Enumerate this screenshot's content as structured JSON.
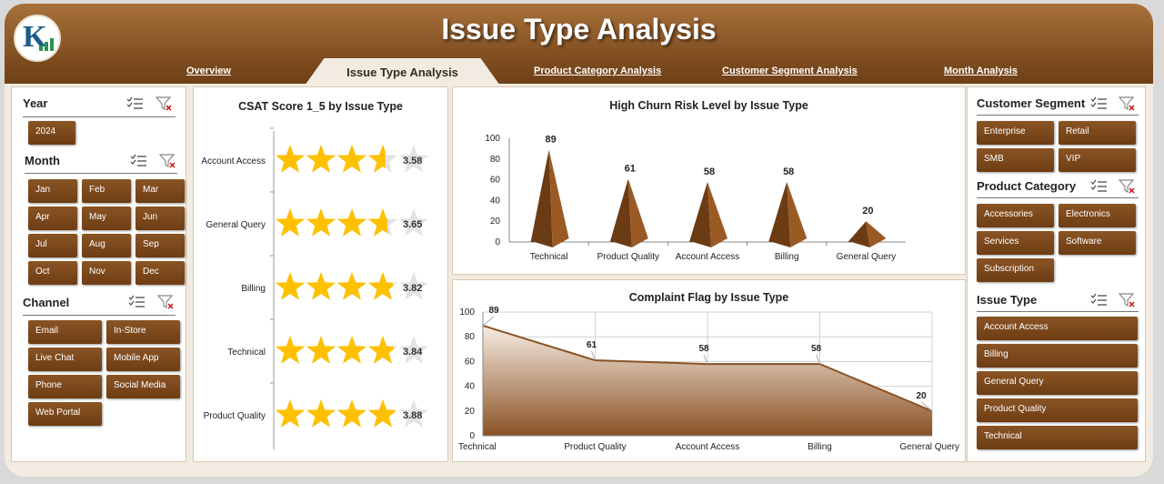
{
  "header": {
    "title": "Issue Type Analysis"
  },
  "tabs": [
    {
      "label": "Overview"
    },
    {
      "label": "Issue Type Analysis"
    },
    {
      "label": "Product Category Analysis"
    },
    {
      "label": "Customer Segment Analysis"
    },
    {
      "label": "Month Analysis"
    }
  ],
  "left_filters": {
    "year": {
      "title": "Year",
      "items": [
        "2024"
      ]
    },
    "month": {
      "title": "Month",
      "items": [
        "Jan",
        "Feb",
        "Mar",
        "Apr",
        "May",
        "Jun",
        "Jul",
        "Aug",
        "Sep",
        "Oct",
        "Nov",
        "Dec"
      ]
    },
    "channel": {
      "title": "Channel",
      "items": [
        "Email",
        "In-Store",
        "Live Chat",
        "Mobile App",
        "Phone",
        "Social Media",
        "Web Portal"
      ]
    }
  },
  "right_filters": {
    "segment": {
      "title": "Customer Segment",
      "items": [
        "Enterprise",
        "Retail",
        "SMB",
        "VIP"
      ]
    },
    "category": {
      "title": "Product Category",
      "items": [
        "Accessories",
        "Electronics",
        "Services",
        "Software",
        "Subscription"
      ]
    },
    "issue": {
      "title": "Issue Type",
      "items": [
        "Account Access",
        "Billing",
        "General Query",
        "Product Quality",
        "Technical"
      ]
    }
  },
  "icons": {
    "multiselect": "multi-select-icon",
    "clear_filter": "clear-filter-icon"
  },
  "colors": {
    "brown": "#7a4519",
    "star": "#ffc000",
    "star_empty": "#e3e3e3"
  },
  "chart_data": [
    {
      "type": "bar",
      "style": "star-rating",
      "title": "CSAT Score 1_5 by Issue Type",
      "categories": [
        "Account Access",
        "General Query",
        "Billing",
        "Technical",
        "Product Quality"
      ],
      "values": [
        3.58,
        3.65,
        3.82,
        3.84,
        3.88
      ],
      "value_labels": [
        "3.58",
        "3.65",
        "3.82",
        "3.84",
        "3.88"
      ],
      "max": 5
    },
    {
      "type": "bar",
      "style": "pyramid",
      "title": "High Churn Risk Level by Issue Type",
      "categories": [
        "Technical",
        "Product Quality",
        "Account Access",
        "Billing",
        "General Query"
      ],
      "values": [
        89,
        61,
        58,
        58,
        20
      ],
      "ylim": [
        0,
        100
      ],
      "yticks": [
        "0",
        "20",
        "40",
        "60",
        "80",
        "100"
      ],
      "grid": false
    },
    {
      "type": "area",
      "title": "Complaint Flag by Issue Type",
      "categories": [
        "Technical",
        "Product Quality",
        "Account Access",
        "Billing",
        "General Query"
      ],
      "values": [
        89,
        61,
        58,
        58,
        20
      ],
      "ylim": [
        0,
        100
      ],
      "yticks": [
        "0",
        "20",
        "40",
        "60",
        "80",
        "100"
      ],
      "grid": true
    }
  ]
}
